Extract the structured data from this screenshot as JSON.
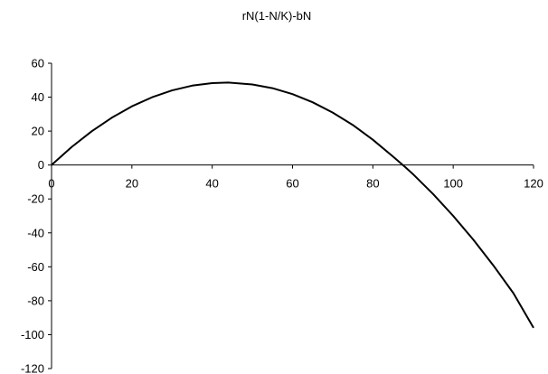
{
  "chart_data": {
    "type": "line",
    "title": "rN(1-N/K)-bN",
    "xlabel": "",
    "ylabel": "",
    "xlim": [
      0,
      120
    ],
    "ylim": [
      -120,
      60
    ],
    "x_ticks": [
      0,
      20,
      40,
      60,
      80,
      100,
      120
    ],
    "y_ticks": [
      60,
      40,
      20,
      0,
      -20,
      -40,
      -60,
      -80,
      -100,
      -120
    ],
    "grid": false,
    "legend": "none",
    "line_color": "#000000",
    "series": [
      {
        "x": [
          0,
          5,
          10,
          15,
          20,
          25,
          30,
          35,
          40,
          44,
          50,
          55,
          60,
          65,
          70,
          75,
          80,
          85,
          88,
          90,
          95,
          100,
          105,
          110,
          115,
          120
        ],
        "y": [
          0,
          10.6,
          19.9,
          27.9,
          34.6,
          39.9,
          44.0,
          46.8,
          48.3,
          48.6,
          47.5,
          45.3,
          41.8,
          37.0,
          30.9,
          23.6,
          14.9,
          5.0,
          -1.1,
          -5.4,
          -17.1,
          -30.0,
          -44.0,
          -59.2,
          -75.6,
          -96.0
        ]
      }
    ]
  }
}
